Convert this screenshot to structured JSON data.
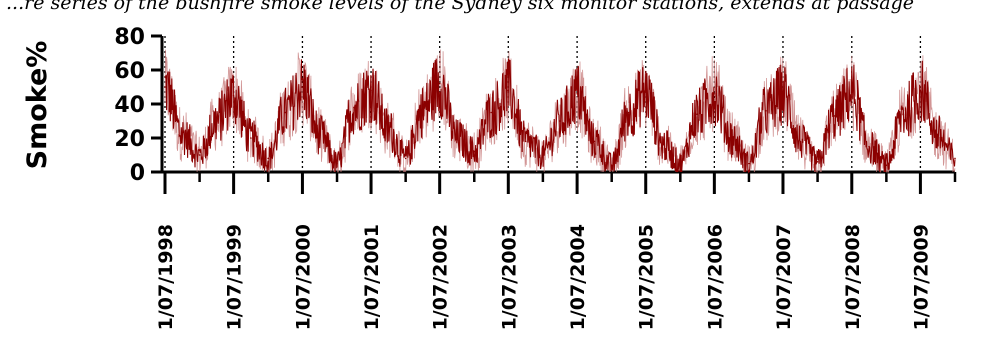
{
  "caption": "...re series of the bushfire smoke levels of the Sydney six monitor stations, extends at passage",
  "chart_data": {
    "type": "line",
    "ylabel": "Smoke%",
    "xlabel": "",
    "ylim": [
      0,
      80
    ],
    "yticks": [
      0,
      20,
      40,
      60,
      80
    ],
    "x_axis_range": [
      "1998-07-01",
      "2010-01-01"
    ],
    "xtick_labels": [
      "1/07/1998",
      "1/07/1999",
      "1/07/2000",
      "1/07/2001",
      "1/07/2002",
      "1/07/2003",
      "1/07/2004",
      "1/07/2005",
      "1/07/2006",
      "1/07/2007",
      "1/07/2008",
      "1/07/2009"
    ],
    "xtick_dates": [
      "1998-07-01",
      "1999-07-01",
      "2000-07-01",
      "2001-07-01",
      "2002-07-01",
      "2003-07-01",
      "2004-07-01",
      "2005-07-01",
      "2006-07-01",
      "2007-07-01",
      "2008-07-01",
      "2009-07-01"
    ],
    "gridlines": "dotted vertical at 1 July each year",
    "series": [
      {
        "color": "#8b0000",
        "x": [
          "1998-07-01",
          "1998-10-01",
          "1999-01-01",
          "1999-04-01",
          "1999-07-01",
          "1999-10-01",
          "2000-01-01",
          "2000-04-01",
          "2000-07-01",
          "2000-10-01",
          "2001-01-01",
          "2001-04-01",
          "2001-07-01",
          "2001-10-01",
          "2002-01-01",
          "2002-04-01",
          "2002-07-01",
          "2002-10-01",
          "2003-01-01",
          "2003-04-01",
          "2003-07-01",
          "2003-10-01",
          "2004-01-01",
          "2004-04-01",
          "2004-07-01",
          "2004-10-01",
          "2005-01-01",
          "2005-04-01",
          "2005-07-01",
          "2005-10-01",
          "2006-01-01",
          "2006-04-01",
          "2006-07-01",
          "2006-10-01",
          "2007-01-01",
          "2007-04-01",
          "2007-07-01",
          "2007-10-01",
          "2008-01-01",
          "2008-04-01",
          "2008-07-01",
          "2008-10-01",
          "2009-01-01",
          "2009-04-01",
          "2009-07-01",
          "2009-10-01",
          "2010-01-01"
        ],
        "y": [
          50,
          22,
          10,
          30,
          45,
          20,
          8,
          35,
          50,
          22,
          5,
          38,
          48,
          25,
          8,
          36,
          52,
          20,
          12,
          35,
          48,
          18,
          10,
          30,
          46,
          18,
          4,
          35,
          47,
          16,
          5,
          34,
          46,
          20,
          5,
          36,
          46,
          18,
          6,
          33,
          47,
          15,
          4,
          34,
          48,
          22,
          8
        ]
      }
    ]
  }
}
